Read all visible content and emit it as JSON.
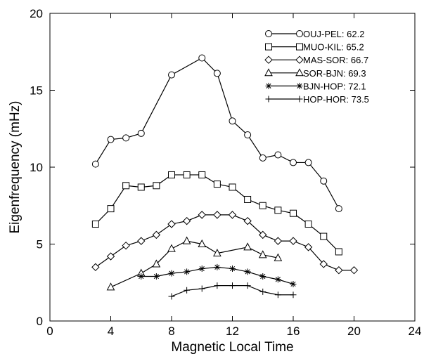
{
  "chart_data": {
    "type": "line",
    "xlabel": "Magnetic Local Time",
    "ylabel": "Eigenfrequency (mHz)",
    "xlim": [
      0,
      24
    ],
    "ylim": [
      0,
      20
    ],
    "xticks": [
      0,
      4,
      8,
      12,
      16,
      20,
      24
    ],
    "yticks": [
      0,
      5,
      10,
      15,
      20
    ],
    "grid": false,
    "legend_position": "top-right",
    "series": [
      {
        "name": "OUJ-PEL: 62.2",
        "marker": "circle",
        "color": "#000000",
        "x": [
          3,
          4,
          5,
          6,
          8,
          10,
          11,
          12,
          13,
          14,
          15,
          16,
          17,
          18,
          19
        ],
        "y": [
          10.2,
          11.8,
          11.9,
          12.2,
          16.0,
          17.1,
          16.1,
          13.0,
          12.1,
          10.6,
          10.8,
          10.3,
          10.3,
          9.1,
          7.3
        ]
      },
      {
        "name": "MUO-KIL: 65.2",
        "marker": "square",
        "color": "#000000",
        "x": [
          3,
          4,
          5,
          6,
          7,
          8,
          9,
          10,
          11,
          12,
          13,
          14,
          15,
          16,
          17,
          18,
          19
        ],
        "y": [
          6.3,
          7.3,
          8.8,
          8.7,
          8.8,
          9.5,
          9.5,
          9.5,
          8.9,
          8.7,
          7.9,
          7.5,
          7.2,
          7.0,
          6.3,
          5.5,
          4.5
        ]
      },
      {
        "name": "MAS-SOR: 66.7",
        "marker": "diamond",
        "color": "#000000",
        "x": [
          3,
          4,
          5,
          6,
          7,
          8,
          9,
          10,
          11,
          12,
          13,
          14,
          15,
          16,
          17,
          18,
          19,
          20
        ],
        "y": [
          3.5,
          4.2,
          4.9,
          5.2,
          5.6,
          6.3,
          6.5,
          6.9,
          6.9,
          6.9,
          6.5,
          5.6,
          5.2,
          5.2,
          4.8,
          3.7,
          3.3,
          3.3
        ]
      },
      {
        "name": "SOR-BJN: 69.3",
        "marker": "triangle",
        "color": "#000000",
        "x": [
          4,
          6,
          7,
          8,
          9,
          10,
          11,
          13,
          14,
          15
        ],
        "y": [
          2.2,
          3.1,
          3.7,
          4.7,
          5.2,
          5.0,
          4.4,
          4.8,
          4.3,
          4.1
        ]
      },
      {
        "name": "BJN-HOP: 72.1",
        "marker": "star",
        "color": "#000000",
        "x": [
          6,
          7,
          8,
          9,
          10,
          11,
          12,
          13,
          14,
          15,
          16
        ],
        "y": [
          2.9,
          2.9,
          3.1,
          3.2,
          3.4,
          3.5,
          3.4,
          3.2,
          2.9,
          2.7,
          2.4
        ]
      },
      {
        "name": "HOP-HOR: 73.5",
        "marker": "plus",
        "color": "#000000",
        "x": [
          8,
          9,
          10,
          11,
          12,
          13,
          14,
          15,
          16
        ],
        "y": [
          1.6,
          2.0,
          2.1,
          2.3,
          2.3,
          2.3,
          1.9,
          1.7,
          1.7
        ]
      }
    ]
  }
}
